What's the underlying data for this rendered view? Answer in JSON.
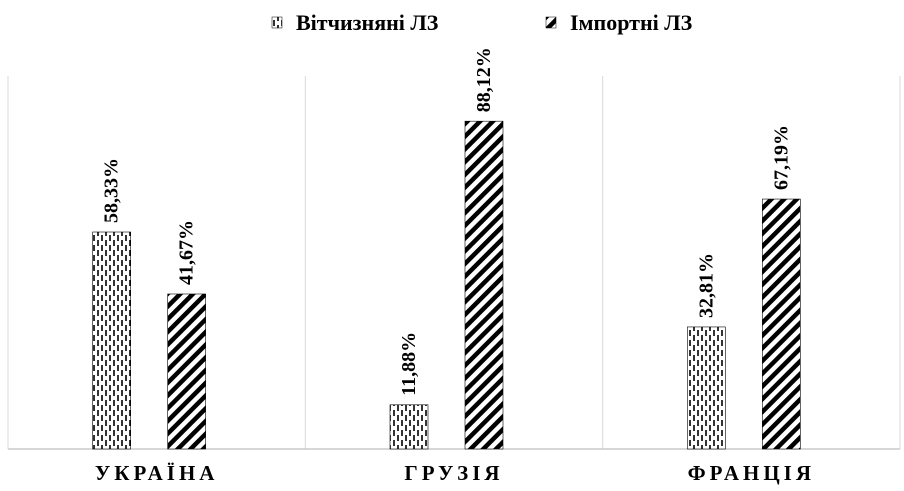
{
  "chart_data": {
    "type": "bar",
    "title": "",
    "xlabel": "",
    "ylabel": "",
    "ylim": [
      0,
      100
    ],
    "grid": false,
    "legend_position": "top",
    "categories": [
      "УКРАЇНА",
      "ГРУЗІЯ",
      "ФРАНЦІЯ"
    ],
    "series": [
      {
        "name": "Вітчизняні ЛЗ",
        "values": [
          58.33,
          11.88,
          32.81
        ],
        "labels": [
          "58,33%",
          "11,88%",
          "32,81%"
        ],
        "pattern": "dashed-vertical"
      },
      {
        "name": "Імпортні ЛЗ",
        "values": [
          41.67,
          88.12,
          67.19
        ],
        "labels": [
          "41,67%",
          "88,12%",
          "67,19%"
        ],
        "pattern": "diagonal-stripes"
      }
    ]
  }
}
